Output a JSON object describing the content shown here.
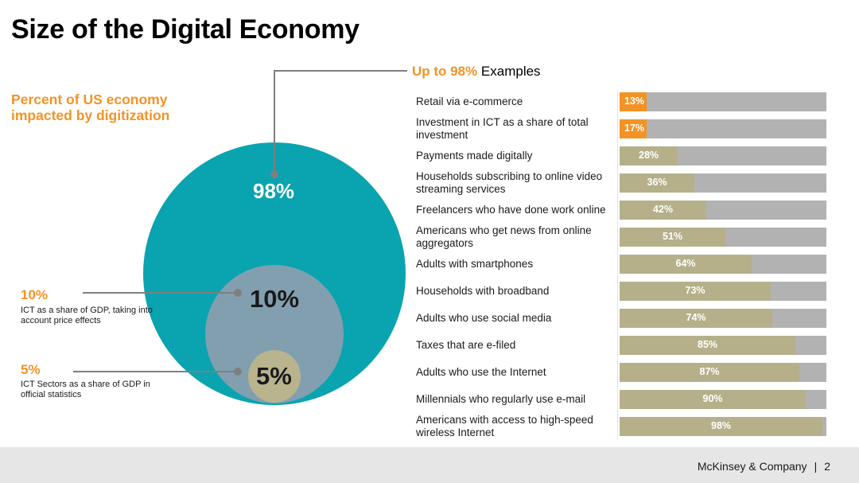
{
  "title": "Size of the Digital Economy",
  "subtitle_line1": "Percent of US economy",
  "subtitle_line2": "impacted by digitization",
  "colors": {
    "accent": "#f39325",
    "teal": "#0aa3b0",
    "mid": "#829fb0",
    "small": "#b9b48e",
    "bar_fill": "#b5b08a",
    "bar_bg": "#b2b2b2"
  },
  "bubbles": {
    "outer_label": "98%",
    "middle_label": "10%",
    "inner_label": "5%"
  },
  "callouts": {
    "ten": {
      "pct": "10%",
      "text": "ICT as a share of GDP, taking into account price effects"
    },
    "five": {
      "pct": "5%",
      "text": "ICT Sectors as a share of GDP in official statistics"
    }
  },
  "examples_header": {
    "highlight": "Up to 98%",
    "rest": " Examples"
  },
  "chart_data": {
    "type": "bar",
    "orientation": "horizontal",
    "xlim": [
      0,
      100
    ],
    "categories": [
      "Retail via e-commerce",
      "Investment in ICT as a share of total investment",
      "Payments made digitally",
      "Households subscribing to online video streaming services",
      "Freelancers who have done work online",
      "Americans who get news from online aggregators",
      "Adults with smartphones",
      "Households with broadband",
      "Adults who use social media",
      "Taxes that are e-filed",
      "Adults who use the Internet",
      "Millennials who regularly use e-mail",
      "Americans with access to high-speed wireless Internet"
    ],
    "values": [
      13,
      17,
      28,
      36,
      42,
      51,
      64,
      73,
      74,
      85,
      87,
      90,
      98
    ],
    "value_labels": [
      "13%",
      "17%",
      "28%",
      "36%",
      "42%",
      "51%",
      "64%",
      "73%",
      "74%",
      "85%",
      "87%",
      "90%",
      "98%"
    ],
    "highlighted": [
      true,
      true,
      false,
      false,
      false,
      false,
      false,
      false,
      false,
      false,
      false,
      false,
      false
    ]
  },
  "footer": {
    "company": "McKinsey & Company",
    "page": "2"
  }
}
